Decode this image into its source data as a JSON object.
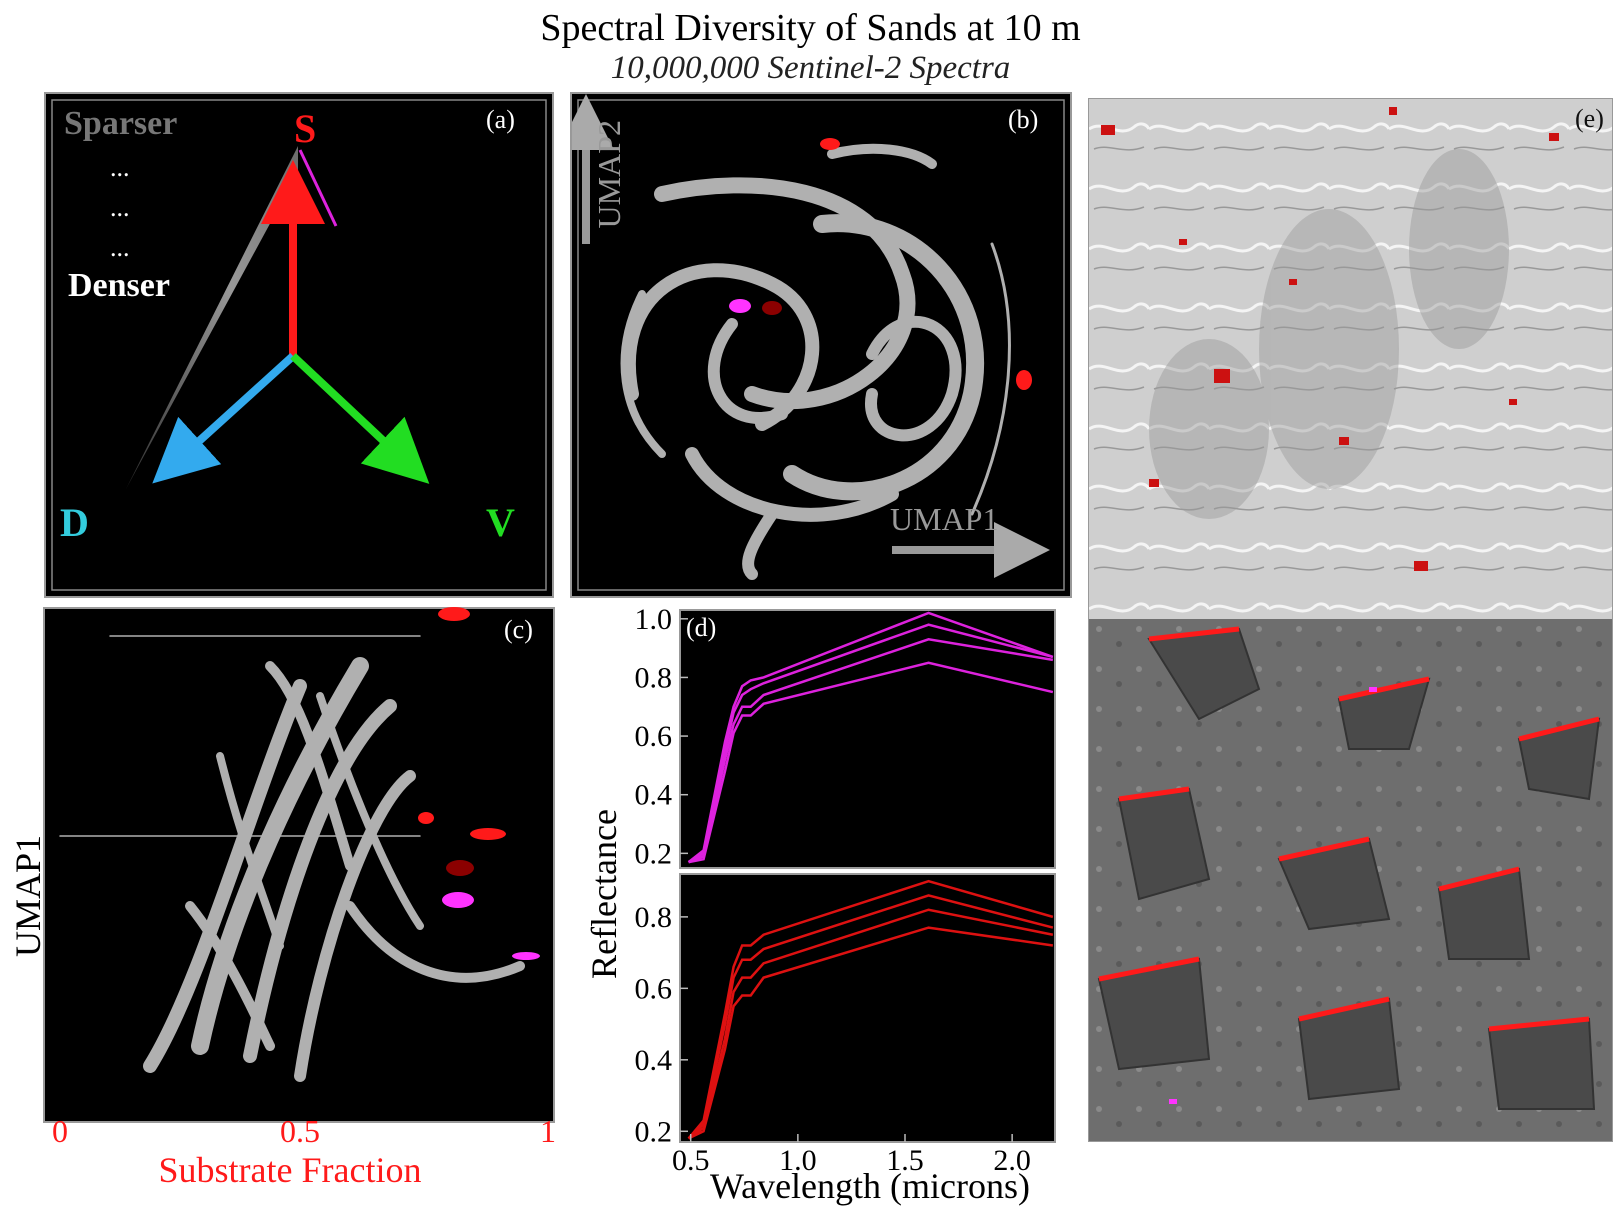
{
  "title": "Spectral Diversity of Sands at 10 m",
  "subtitle": "10,000,000 Sentinel-2 Spectra",
  "panels": {
    "a": {
      "label": "(a)",
      "sparser": "Sparser",
      "dots": "...",
      "denser": "Denser",
      "endmembers": {
        "S": "S",
        "V": "V",
        "D": "D"
      },
      "colors": {
        "S": "#ff1a1a",
        "V": "#22dd22",
        "D": "#33aaee"
      }
    },
    "b": {
      "label": "(b)",
      "umap1": "UMAP1",
      "umap2": "UMAP2"
    },
    "c": {
      "label": "(c)",
      "ylabel": "UMAP1",
      "xlabel": "Substrate Fraction",
      "xticks": [
        "0",
        "0.5",
        "1"
      ]
    },
    "e": {
      "label": "(e)"
    }
  },
  "chart_data": [
    {
      "panel": "d-top",
      "type": "line",
      "label": "(d)",
      "color": "#dd22dd",
      "x": [
        0.49,
        0.56,
        0.66,
        0.7,
        0.74,
        0.78,
        0.84,
        1.61,
        2.19
      ],
      "xlim": [
        0.45,
        2.2
      ],
      "ylim": [
        0.15,
        1.03
      ],
      "yticks": [
        0.2,
        0.4,
        0.6,
        0.8,
        1.0
      ],
      "series": [
        {
          "values": [
            0.17,
            0.21,
            0.58,
            0.7,
            0.77,
            0.79,
            0.8,
            1.02,
            0.87
          ]
        },
        {
          "values": [
            0.17,
            0.2,
            0.55,
            0.68,
            0.74,
            0.76,
            0.78,
            0.98,
            0.87
          ]
        },
        {
          "values": [
            0.17,
            0.19,
            0.52,
            0.64,
            0.7,
            0.7,
            0.74,
            0.93,
            0.86
          ]
        },
        {
          "values": [
            0.17,
            0.18,
            0.48,
            0.61,
            0.67,
            0.67,
            0.71,
            0.85,
            0.75
          ]
        }
      ]
    },
    {
      "panel": "d-bottom",
      "type": "line",
      "color": "#dd1111",
      "x": [
        0.49,
        0.56,
        0.66,
        0.7,
        0.74,
        0.78,
        0.84,
        1.61,
        2.19
      ],
      "xlim": [
        0.45,
        2.2
      ],
      "xticks": [
        0.5,
        1.0,
        1.5,
        2.0
      ],
      "xticklabels": [
        "0.5",
        "1.0",
        "1.5",
        "2.0"
      ],
      "ylim": [
        0.17,
        0.92
      ],
      "yticks": [
        0.2,
        0.4,
        0.6,
        0.8
      ],
      "xlabel": "Wavelength (microns)",
      "ylabel": "Reflectance",
      "series": [
        {
          "values": [
            0.18,
            0.23,
            0.53,
            0.66,
            0.72,
            0.72,
            0.75,
            0.9,
            0.8
          ]
        },
        {
          "values": [
            0.18,
            0.22,
            0.5,
            0.63,
            0.68,
            0.68,
            0.71,
            0.86,
            0.77
          ]
        },
        {
          "values": [
            0.18,
            0.21,
            0.46,
            0.59,
            0.63,
            0.63,
            0.67,
            0.82,
            0.75
          ]
        },
        {
          "values": [
            0.18,
            0.2,
            0.43,
            0.55,
            0.58,
            0.58,
            0.63,
            0.77,
            0.72
          ]
        }
      ]
    }
  ]
}
